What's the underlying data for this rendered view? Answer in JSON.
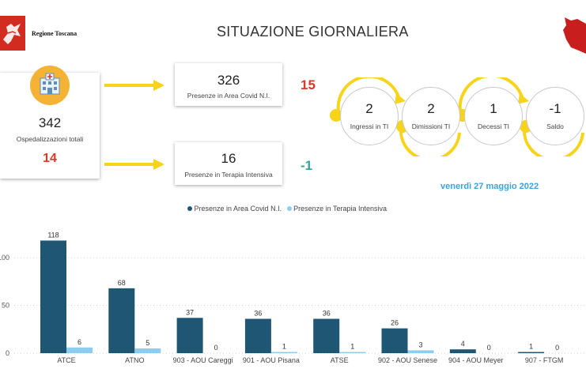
{
  "header": {
    "region_label": "Regione Toscana",
    "title": "SITUAZIONE GIORNALIERA",
    "date": "venerdì 27 maggio 2022"
  },
  "colors": {
    "dark": "#1f5673",
    "light": "#8ecdf0",
    "yellow": "#f7d31a",
    "red": "#d93a26",
    "teal": "#2fa69a",
    "date_blue": "#3ba3d9"
  },
  "kpis": {
    "total": {
      "value": "342",
      "label": "Ospedalizzazioni totali",
      "delta": "14"
    },
    "area_covid": {
      "value": "326",
      "label": "Presenze in Area Covid N.I.",
      "delta": "15"
    },
    "ti": {
      "value": "16",
      "label": "Presenze in Terapia Intensiva",
      "delta": "-1"
    }
  },
  "flow": [
    {
      "value": "2",
      "label": "Ingressi in TI"
    },
    {
      "value": "2",
      "label": "Dimissioni TI"
    },
    {
      "value": "1",
      "label": "Decessi TI"
    },
    {
      "value": "-1",
      "label": "Saldo"
    }
  ],
  "chart_data": {
    "type": "bar",
    "categories": [
      "ATCE",
      "ATNO",
      "903 - AOU Careggi",
      "901 - AOU Pisana",
      "ATSE",
      "902 - AOU Senese",
      "904 - AOU Meyer",
      "907 - FTGM"
    ],
    "series": [
      {
        "name": "Presenze in Area Covid N.I.",
        "values": [
          118,
          68,
          37,
          36,
          36,
          26,
          4,
          1
        ],
        "color": "#1f5673"
      },
      {
        "name": "Presenze in Terapia Intensiva",
        "values": [
          6,
          5,
          0,
          1,
          1,
          3,
          0,
          0
        ],
        "color": "#8ecdf0"
      }
    ],
    "yticks": [
      "100",
      "50",
      "0"
    ],
    "ylim": [
      0,
      125
    ],
    "grid": true,
    "legend": "top-center"
  }
}
